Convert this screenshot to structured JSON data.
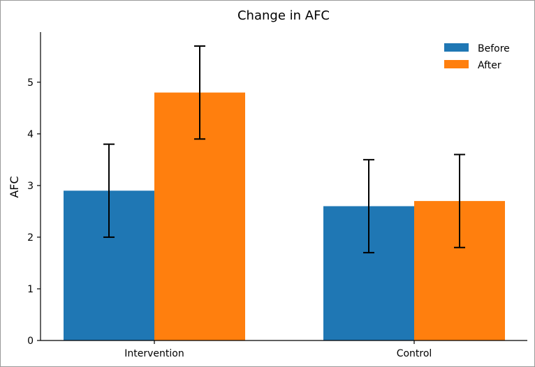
{
  "chart_data": {
    "type": "bar",
    "title": "Change in AFC",
    "xlabel": "",
    "ylabel": "AFC",
    "categories": [
      "Intervention",
      "Control"
    ],
    "series": [
      {
        "name": "Before",
        "color": "#1f77b4",
        "values": [
          2.9,
          2.6
        ],
        "errors": [
          0.9,
          0.9
        ]
      },
      {
        "name": "After",
        "color": "#ff7f0e",
        "values": [
          4.8,
          2.7
        ],
        "errors": [
          0.9,
          0.9
        ]
      }
    ],
    "ylim": [
      0,
      6
    ],
    "yticks": [
      0,
      1,
      2,
      3,
      4,
      5
    ],
    "grid": false,
    "legend": "top-right"
  }
}
